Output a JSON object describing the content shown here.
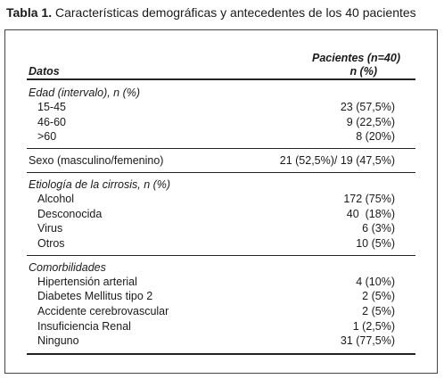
{
  "title": {
    "label": "Tabla 1.",
    "text": "Características demográficas y antecedentes de los 40 pacientes"
  },
  "table": {
    "header": {
      "first": "Datos",
      "second": [
        "Pacientes (n=40)",
        "n (%)"
      ]
    },
    "sections": [
      {
        "heading": "Edad (intervalo), n (%)",
        "rows": [
          [
            "15-45",
            "23 (57,5%)"
          ],
          [
            "46-60",
            "9 (22,5%)"
          ],
          [
            ">60",
            "8 (20%)"
          ]
        ]
      },
      {
        "rows": [
          [
            "Sexo (masculino/femenino)",
            "21 (52,5%)/ 19 (47,5%)"
          ]
        ]
      },
      {
        "heading": "Etiología de la cirrosis, n (%)",
        "rows": [
          [
            "Alcohol",
            "172 (75%)"
          ],
          [
            "Desconocida",
            "40  (18%)"
          ],
          [
            "Virus",
            "6 (3%)"
          ],
          [
            "Otros",
            "10 (5%)"
          ]
        ]
      },
      {
        "heading": "Comorbilidades",
        "rows": [
          [
            "Hipertensión arterial",
            "4 (10%)"
          ],
          [
            "Diabetes Mellitus tipo 2",
            "2 (5%)"
          ],
          [
            "Accidente cerebrovascular",
            "2 (5%)"
          ],
          [
            "Insuficiencia Renal",
            "1 (2,5%)"
          ],
          [
            "Ninguno",
            "31 (77,5%)"
          ]
        ]
      }
    ]
  }
}
